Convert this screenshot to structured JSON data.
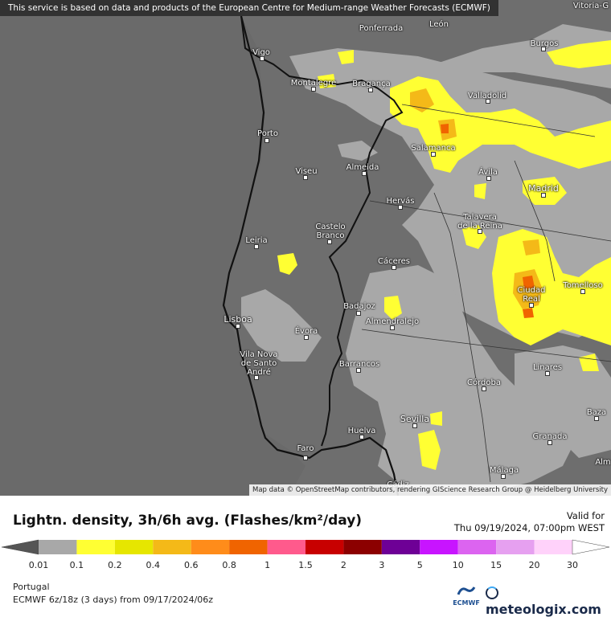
{
  "map": {
    "attribution_top": "This service is based on data and products of the European Centre for Medium-range Weather Forecasts (ECMWF)",
    "attribution_bottom": "Map data © OpenStreetMap contributors, rendering GIScience Research Group @ Heidelberg University",
    "cities": {
      "vitoria": "Vitoria-G",
      "ponferrada": "Ponferrada",
      "leon": "León",
      "vigo": "Vigo",
      "burgos": "Burgos",
      "montalegre": "Montalegre",
      "braganca": "Bragança",
      "valladolid": "Valladolid",
      "porto": "Porto",
      "salamanca": "Salamanca",
      "viseu": "Viseu",
      "almeida": "Almeida",
      "avila": "Ávila",
      "madrid": "Madrid",
      "hervas": "Hervás",
      "talavera": "Talavera\nde la Reina",
      "castelo_branco": "Castelo\nBranco",
      "leiria": "Leiria",
      "caceres": "Cáceres",
      "ciudad_real": "Ciudad\nReal",
      "tomelloso": "Tomelloso",
      "badajoz": "Badajoz",
      "lisboa": "Lisboa",
      "evora": "Évora",
      "almendralejo": "Almendralejo",
      "vila_nova": "Vila Nova\nde Santo\nAndré",
      "barrancos": "Barrancos",
      "linares": "Linares",
      "cordoba": "Córdoba",
      "sevilla": "Sevilla",
      "baza": "Baza",
      "huelva": "Huelva",
      "granada": "Granada",
      "faro": "Faro",
      "malaga": "Málaga",
      "cadiz": "Cádiz",
      "alm": "Alm"
    }
  },
  "legend": {
    "title": "Lightn. density, 3h/6h avg. (Flashes/km²/day)",
    "valid_label": "Valid for",
    "valid_time": "Thu 09/19/2024, 07:00pm WEST",
    "ticks": [
      "0.01",
      "0.1",
      "0.2",
      "0.4",
      "0.6",
      "0.8",
      "1",
      "1.5",
      "2",
      "3",
      "5",
      "10",
      "15",
      "20",
      "30"
    ],
    "colors": [
      "#a8a8a8",
      "#ffff33",
      "#e6e600",
      "#f4b918",
      "#ff8c1a",
      "#f06400",
      "#ff5a8c",
      "#c80000",
      "#8c0000",
      "#6e0096",
      "#c814ff",
      "#dc64f0",
      "#e6a0f0",
      "#ffd2fa"
    ],
    "low_color": "#555555",
    "high_color": "#ffffff"
  },
  "footer": {
    "region": "Portugal",
    "model_info": "ECMWF 6z/18z (3 days) from 09/17/2024/06z",
    "ecmwf_logo": "ECMWF",
    "brand": "meteologix.com"
  }
}
